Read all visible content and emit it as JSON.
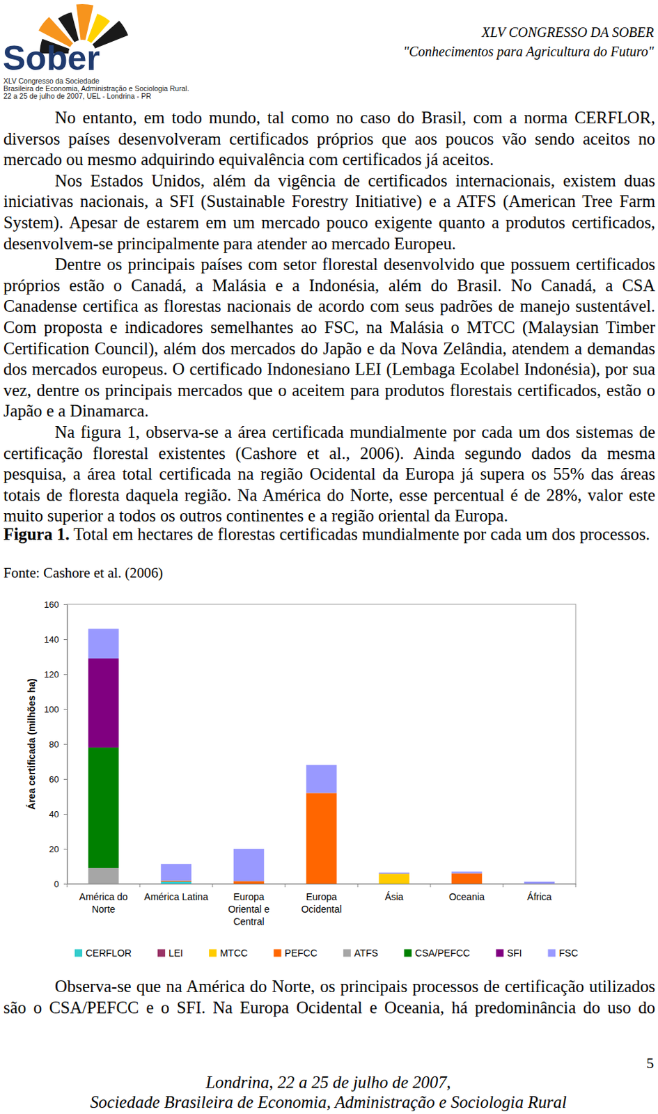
{
  "header": {
    "logo_text": "Sober",
    "logo_lines": [
      "XLV Congresso da Sociedade",
      "Brasileira de Economia, Administração e Sociologia Rural.",
      "22 a 25 de julho de 2007, UEL - Londrina - PR"
    ],
    "congress": "XLV CONGRESSO DA SOBER",
    "theme": "\"Conhecimentos para Agricultura do Futuro\""
  },
  "paragraphs": [
    "No entanto, em todo mundo, tal como no caso do Brasil, com a norma CERFLOR, diversos países desenvolveram certificados próprios que aos poucos vão sendo aceitos no mercado ou mesmo adquirindo equivalência com certificados já aceitos.",
    "Nos Estados Unidos, além da vigência de certificados internacionais, existem duas iniciativas nacionais, a SFI (Sustainable Forestry Initiative) e a ATFS (American Tree Farm System). Apesar de estarem em um mercado pouco exigente quanto a produtos certificados, desenvolvem-se principalmente para atender ao mercado Europeu.",
    "Dentre os principais países com setor florestal desenvolvido que possuem certificados próprios estão o Canadá, a Malásia e a Indonésia, além do Brasil. No Canadá, a CSA Canadense certifica as florestas nacionais de acordo com seus padrões de manejo sustentável. Com proposta e indicadores semelhantes ao FSC, na Malásia o MTCC (Malaysian Timber Certification Council), além dos mercados do Japão e da Nova Zelândia, atendem a demandas dos mercados europeus. O certificado Indonesiano LEI (Lembaga Ecolabel Indonésia), por sua vez, dentre os principais mercados que o aceitem para produtos florestais certificados, estão o Japão e a Dinamarca.",
    "Na figura 1, observa-se a área certificada mundialmente por cada um dos sistemas de certificação florestal existentes (Cashore et al., 2006). Ainda segundo dados da mesma pesquisa, a área total certificada na região Ocidental da Europa já supera os 55% das áreas totais de floresta daquela região. Na América do Norte, esse percentual é de 28%, valor este muito superior a todos os outros continentes e a região oriental da Europa."
  ],
  "figure": {
    "label": "Figura 1.",
    "caption": "Total em hectares de florestas certificadas mundialmente por cada um dos processos.",
    "source": "Fonte: Cashore et al. (2006)"
  },
  "chart_data": {
    "type": "bar",
    "stacked": true,
    "y_label": "Área certificada (milhões ha)",
    "categories": [
      "América do Norte",
      "América Latina",
      "Europa Oriental e Central",
      "Europa Ocidental",
      "Ásia",
      "Oceania",
      "África"
    ],
    "series": [
      {
        "name": "CERFLOR",
        "color": "#33cccc",
        "values": [
          0,
          1.2,
          0,
          0,
          0,
          0,
          0
        ]
      },
      {
        "name": "LEI",
        "color": "#993366",
        "values": [
          0,
          0,
          0,
          0,
          0,
          0,
          0
        ]
      },
      {
        "name": "MTCC",
        "color": "#ffcc00",
        "values": [
          0,
          0,
          0,
          0,
          5.8,
          0,
          0
        ]
      },
      {
        "name": "PEFCC",
        "color": "#ff6600",
        "values": [
          0,
          0.6,
          1.5,
          52,
          0,
          6,
          0
        ]
      },
      {
        "name": "ATFS",
        "color": "#a6a6a6",
        "values": [
          9,
          0,
          0,
          0,
          0,
          0,
          0
        ]
      },
      {
        "name": "CSA/PEFCC",
        "color": "#008000",
        "values": [
          69,
          0,
          0,
          0,
          0,
          0,
          0
        ]
      },
      {
        "name": "SFI",
        "color": "#800080",
        "values": [
          51,
          0,
          0,
          0,
          0,
          0,
          0
        ]
      },
      {
        "name": "FSC",
        "color": "#9999ff",
        "values": [
          17,
          9.5,
          18.5,
          16,
          0.6,
          1,
          1.2
        ]
      }
    ],
    "ylim": [
      0,
      160
    ],
    "yticks": [
      0,
      20,
      40,
      60,
      80,
      100,
      120,
      140,
      160
    ],
    "grid": false,
    "legend": "bottom"
  },
  "closing_paragraph": "Observa-se que na América do Norte, os principais processos de certificação utilizados são o CSA/PEFCC e o SFI. Na Europa Ocidental e Oceania, há predominância do uso do",
  "page_number": 5,
  "footer": [
    "Londrina, 22 a 25 de julho de 2007,",
    "Sociedade Brasileira de Economia, Administração e Sociologia Rural"
  ]
}
